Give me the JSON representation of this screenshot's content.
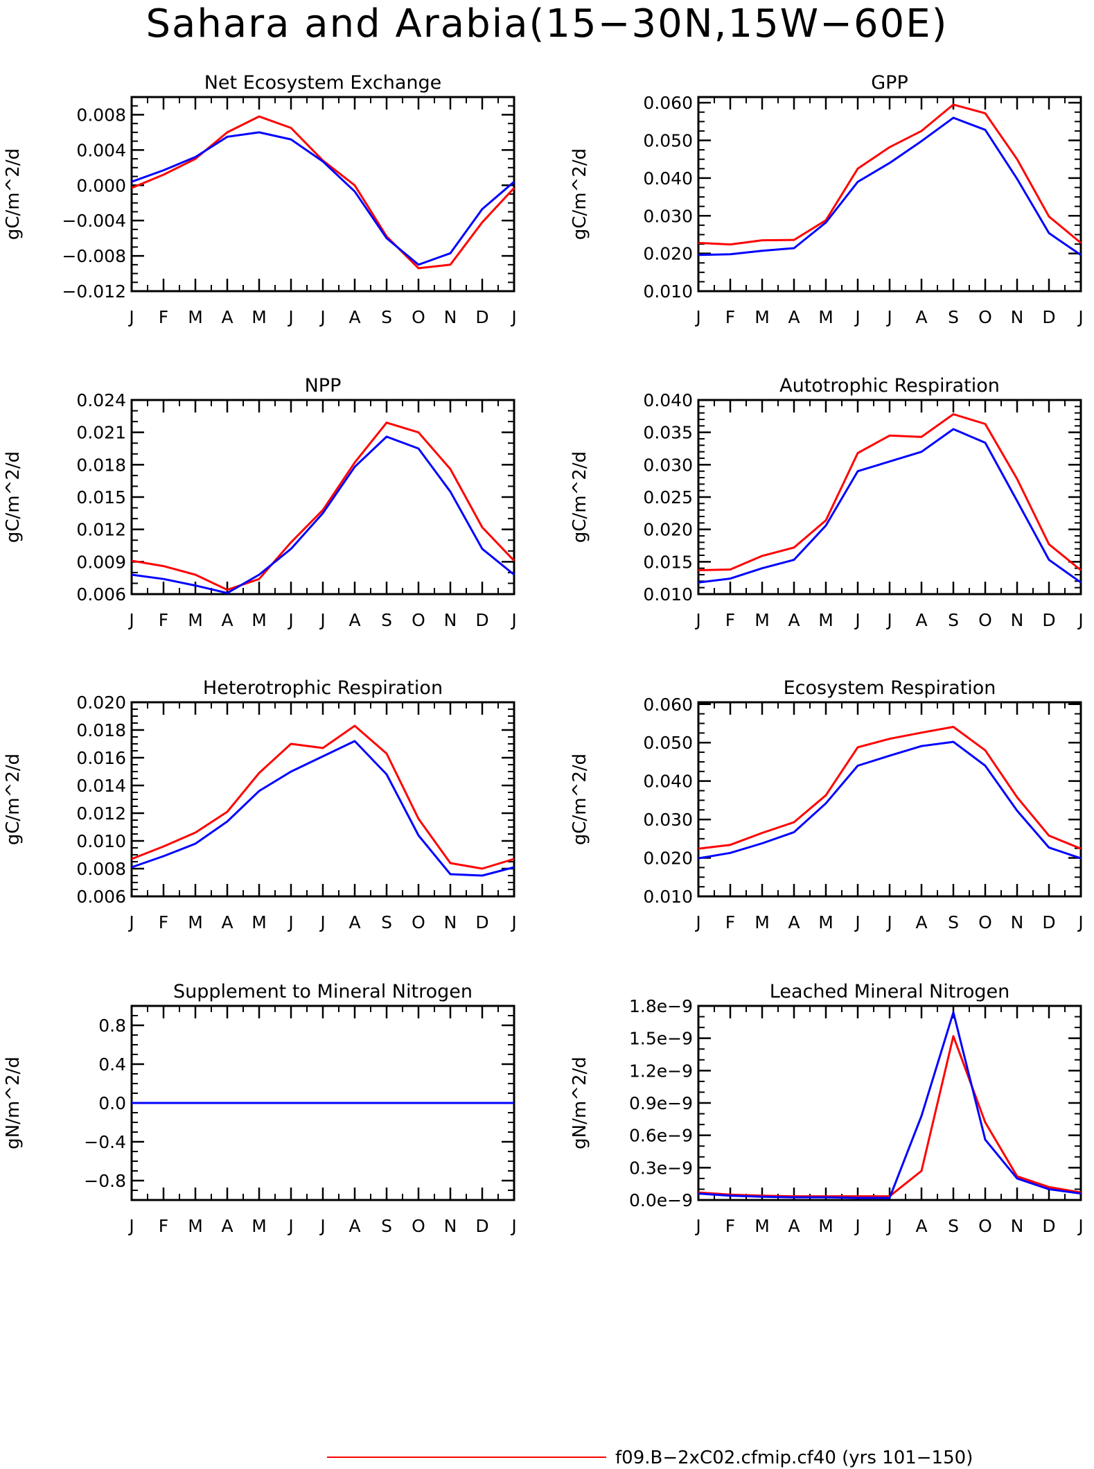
{
  "title": "Sahara and Arabia(15−30N,15W−60E)",
  "colors": {
    "series_a": "#ff0000",
    "series_b": "#0000ff",
    "axes": "#000000"
  },
  "legend": {
    "entries": [
      {
        "label": "f09.B−2xC02.cfmip.cf40 (yrs 101−150)",
        "color": "#ff0000"
      }
    ]
  },
  "chart_data": [
    {
      "type": "line",
      "title": "Net Ecosystem Exchange",
      "ylabel": "gC/m^2/d",
      "categories": [
        "J",
        "F",
        "M",
        "A",
        "M",
        "J",
        "J",
        "A",
        "S",
        "O",
        "N",
        "D",
        "J"
      ],
      "ylim": [
        -0.012,
        0.01
      ],
      "yticks": [
        -0.012,
        -0.008,
        -0.004,
        0.0,
        0.004,
        0.008
      ],
      "ytick_labels": [
        "−0.012",
        "−0.008",
        "−0.004",
        "0.000",
        "0.004",
        "0.008"
      ],
      "yminor": 0.001,
      "series": [
        {
          "color": "#ff0000",
          "values": [
            -0.0003,
            0.0012,
            0.003,
            0.006,
            0.0078,
            0.0065,
            0.0028,
            0.0,
            -0.0058,
            -0.0094,
            -0.009,
            -0.0042,
            -0.0003
          ]
        },
        {
          "color": "#0000ff",
          "values": [
            0.0004,
            0.0017,
            0.0032,
            0.0055,
            0.006,
            0.0052,
            0.0027,
            -0.0007,
            -0.006,
            -0.009,
            -0.0077,
            -0.0027,
            0.0004
          ]
        }
      ]
    },
    {
      "type": "line",
      "title": "GPP",
      "ylabel": "gC/m^2/d",
      "categories": [
        "J",
        "F",
        "M",
        "A",
        "M",
        "J",
        "J",
        "A",
        "S",
        "O",
        "N",
        "D",
        "J"
      ],
      "ylim": [
        0.01,
        0.0615
      ],
      "yticks": [
        0.01,
        0.02,
        0.03,
        0.04,
        0.05,
        0.06
      ],
      "ytick_labels": [
        "0.010",
        "0.020",
        "0.030",
        "0.040",
        "0.050",
        "0.060"
      ],
      "yminor": 0.0025,
      "series": [
        {
          "color": "#ff0000",
          "values": [
            0.0228,
            0.0224,
            0.0235,
            0.0236,
            0.0288,
            0.0425,
            0.0482,
            0.0525,
            0.0595,
            0.0572,
            0.045,
            0.0298,
            0.0228
          ]
        },
        {
          "color": "#0000ff",
          "values": [
            0.0196,
            0.0198,
            0.0207,
            0.0214,
            0.0282,
            0.039,
            0.044,
            0.0498,
            0.056,
            0.0528,
            0.0398,
            0.0254,
            0.0196
          ]
        }
      ]
    },
    {
      "type": "line",
      "title": "NPP",
      "ylabel": "gC/m^2/d",
      "categories": [
        "J",
        "F",
        "M",
        "A",
        "M",
        "J",
        "J",
        "A",
        "S",
        "O",
        "N",
        "D",
        "J"
      ],
      "ylim": [
        0.006,
        0.024
      ],
      "yticks": [
        0.006,
        0.009,
        0.012,
        0.015,
        0.018,
        0.021,
        0.024
      ],
      "ytick_labels": [
        "0.006",
        "0.009",
        "0.012",
        "0.015",
        "0.018",
        "0.021",
        "0.024"
      ],
      "yminor": 0.001,
      "series": [
        {
          "color": "#ff0000",
          "values": [
            0.0091,
            0.0086,
            0.0078,
            0.0064,
            0.0074,
            0.0108,
            0.0138,
            0.0182,
            0.0219,
            0.021,
            0.0176,
            0.0122,
            0.0091
          ]
        },
        {
          "color": "#0000ff",
          "values": [
            0.0078,
            0.0074,
            0.0068,
            0.0061,
            0.0078,
            0.0102,
            0.0135,
            0.0178,
            0.0206,
            0.0195,
            0.0155,
            0.0102,
            0.0078
          ]
        }
      ]
    },
    {
      "type": "line",
      "title": "Autotrophic Respiration",
      "ylabel": "gC/m^2/d",
      "categories": [
        "J",
        "F",
        "M",
        "A",
        "M",
        "J",
        "J",
        "A",
        "S",
        "O",
        "N",
        "D",
        "J"
      ],
      "ylim": [
        0.01,
        0.04
      ],
      "yticks": [
        0.01,
        0.015,
        0.02,
        0.025,
        0.03,
        0.035,
        0.04
      ],
      "ytick_labels": [
        "0.010",
        "0.015",
        "0.020",
        "0.025",
        "0.030",
        "0.035",
        "0.040"
      ],
      "yminor": 0.001,
      "series": [
        {
          "color": "#ff0000",
          "values": [
            0.0137,
            0.0138,
            0.0159,
            0.0172,
            0.0214,
            0.0318,
            0.0345,
            0.0343,
            0.0378,
            0.0363,
            0.0278,
            0.0177,
            0.0137
          ]
        },
        {
          "color": "#0000ff",
          "values": [
            0.0118,
            0.0124,
            0.014,
            0.0153,
            0.0206,
            0.029,
            0.0305,
            0.032,
            0.0355,
            0.0334,
            0.0244,
            0.0153,
            0.0118
          ]
        }
      ]
    },
    {
      "type": "line",
      "title": "Heterotrophic Respiration",
      "ylabel": "gC/m^2/d",
      "categories": [
        "J",
        "F",
        "M",
        "A",
        "M",
        "J",
        "J",
        "A",
        "S",
        "O",
        "N",
        "D",
        "J"
      ],
      "ylim": [
        0.006,
        0.02
      ],
      "yticks": [
        0.006,
        0.008,
        0.01,
        0.012,
        0.014,
        0.016,
        0.018,
        0.02
      ],
      "ytick_labels": [
        "0.006",
        "0.008",
        "0.010",
        "0.012",
        "0.014",
        "0.016",
        "0.018",
        "0.020"
      ],
      "yminor": 0.0005,
      "series": [
        {
          "color": "#ff0000",
          "values": [
            0.0087,
            0.0096,
            0.0106,
            0.0121,
            0.0149,
            0.017,
            0.0167,
            0.0183,
            0.0163,
            0.0116,
            0.0084,
            0.008,
            0.0087
          ]
        },
        {
          "color": "#0000ff",
          "values": [
            0.0081,
            0.0089,
            0.0098,
            0.0114,
            0.0136,
            0.015,
            0.0161,
            0.0172,
            0.0148,
            0.0104,
            0.0076,
            0.0075,
            0.0081
          ]
        }
      ]
    },
    {
      "type": "line",
      "title": "Ecosystem Respiration",
      "ylabel": "gC/m^2/d",
      "categories": [
        "J",
        "F",
        "M",
        "A",
        "M",
        "J",
        "J",
        "A",
        "S",
        "O",
        "N",
        "D",
        "J"
      ],
      "ylim": [
        0.01,
        0.0605
      ],
      "yticks": [
        0.01,
        0.02,
        0.03,
        0.04,
        0.05,
        0.06
      ],
      "ytick_labels": [
        "0.010",
        "0.020",
        "0.030",
        "0.040",
        "0.050",
        "0.060"
      ],
      "yminor": 0.0025,
      "series": [
        {
          "color": "#ff0000",
          "values": [
            0.0224,
            0.0234,
            0.0265,
            0.0293,
            0.0363,
            0.0488,
            0.051,
            0.0526,
            0.0541,
            0.048,
            0.0358,
            0.0258,
            0.0224
          ]
        },
        {
          "color": "#0000ff",
          "values": [
            0.0199,
            0.0213,
            0.0238,
            0.0267,
            0.0342,
            0.044,
            0.0466,
            0.0491,
            0.0502,
            0.044,
            0.0323,
            0.0227,
            0.0199
          ]
        }
      ]
    },
    {
      "type": "line",
      "title": "Supplement to Mineral Nitrogen",
      "ylabel": "gN/m^2/d",
      "categories": [
        "J",
        "F",
        "M",
        "A",
        "M",
        "J",
        "J",
        "A",
        "S",
        "O",
        "N",
        "D",
        "J"
      ],
      "ylim": [
        -1.0,
        1.0
      ],
      "yticks": [
        -0.8,
        -0.4,
        0.0,
        0.4,
        0.8
      ],
      "ytick_labels": [
        "−0.8",
        "−0.4",
        "0.0",
        "0.4",
        "0.8"
      ],
      "yminor": 0.1,
      "series": [
        {
          "color": "#ff0000",
          "values": [
            0,
            0,
            0,
            0,
            0,
            0,
            0,
            0,
            0,
            0,
            0,
            0,
            0
          ]
        },
        {
          "color": "#0000ff",
          "values": [
            0,
            0,
            0,
            0,
            0,
            0,
            0,
            0,
            0,
            0,
            0,
            0,
            0
          ]
        }
      ]
    },
    {
      "type": "line",
      "title": "Leached Mineral Nitrogen",
      "ylabel": "gN/m^2/d",
      "categories": [
        "J",
        "F",
        "M",
        "A",
        "M",
        "J",
        "J",
        "A",
        "S",
        "O",
        "N",
        "D",
        "J"
      ],
      "ylim": [
        0.0,
        1.8e-09
      ],
      "yticks": [
        0.0,
        3e-10,
        6e-10,
        9e-10,
        1.2e-09,
        1.5e-09,
        1.8e-09
      ],
      "ytick_labels": [
        "0.0e−9",
        "0.3e−9",
        "0.6e−9",
        "0.9e−9",
        "1.2e−9",
        "1.5e−9",
        "1.8e−9"
      ],
      "yminor": 1e-10,
      "series": [
        {
          "color": "#ff0000",
          "values": [
            7e-11,
            5e-11,
            4e-11,
            3.5e-11,
            3.5e-11,
            3.5e-11,
            3.5e-11,
            2.7e-10,
            1.52e-09,
            7.2e-10,
            2.2e-10,
            1.2e-10,
            7e-11
          ]
        },
        {
          "color": "#0000ff",
          "values": [
            6e-11,
            4e-11,
            3e-11,
            2.5e-11,
            2.5e-11,
            2e-11,
            2e-11,
            7.8e-10,
            1.74e-09,
            5.6e-10,
            2e-10,
            1e-10,
            6e-11
          ]
        }
      ]
    }
  ]
}
